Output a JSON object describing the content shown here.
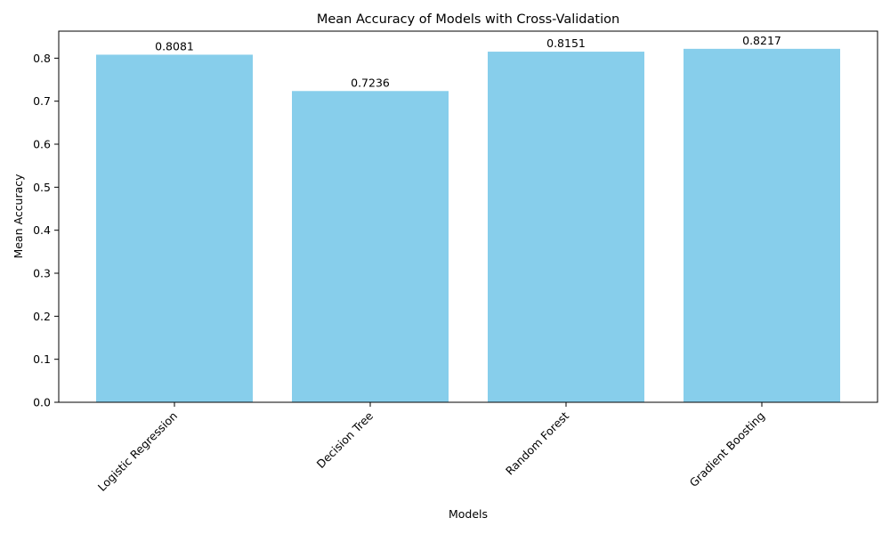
{
  "chart_data": {
    "type": "bar",
    "title": "Mean Accuracy of Models with Cross-Validation",
    "xlabel": "Models",
    "ylabel": "Mean Accuracy",
    "categories": [
      "Logistic Regression",
      "Decision Tree",
      "Random Forest",
      "Gradient Boosting"
    ],
    "values": [
      0.8081,
      0.7236,
      0.8151,
      0.8217
    ],
    "value_labels": [
      "0.8081",
      "0.7236",
      "0.8151",
      "0.8217"
    ],
    "yticks": [
      0.0,
      0.1,
      0.2,
      0.3,
      0.4,
      0.5,
      0.6,
      0.7,
      0.8
    ],
    "ytick_labels": [
      "0.0",
      "0.1",
      "0.2",
      "0.3",
      "0.4",
      "0.5",
      "0.6",
      "0.7",
      "0.8"
    ],
    "ylim": [
      0,
      0.8628
    ],
    "bar_color": "#87ceeb",
    "grid": false,
    "legend": false,
    "xtick_rotation": 45
  }
}
